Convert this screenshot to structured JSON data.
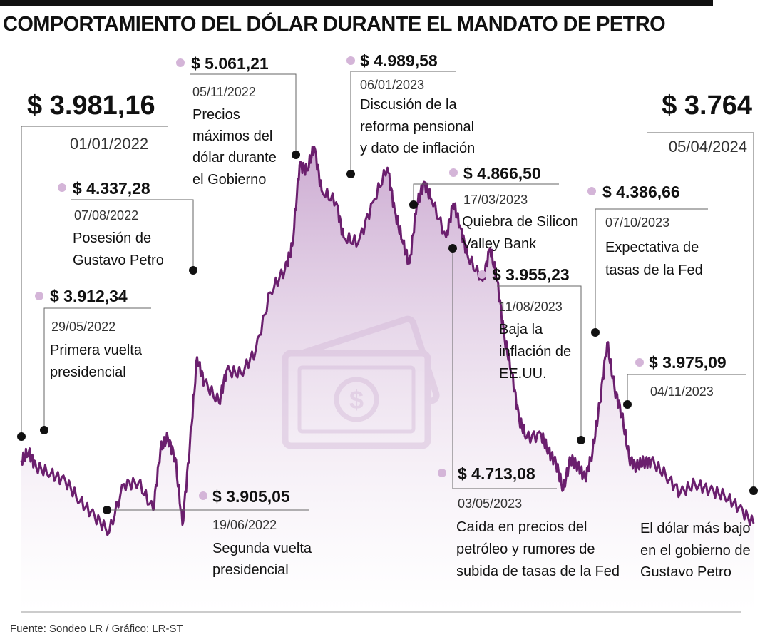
{
  "title": "COMPORTAMIENTO DEL DÓLAR DURANTE EL MANDATO DE PETRO",
  "source": "Fuente: Sondeo LR / Gráfico: LR-ST",
  "colors": {
    "line": "#6b1f6e",
    "fill_top": "#c9a6cf",
    "fill_bottom": "#ffffff",
    "dot_pink": "#d4b5d8",
    "icon": "#d9c3dc"
  },
  "icons": {
    "background": "money-bill-icon"
  },
  "chart_data": {
    "type": "area",
    "title": "COMPORTAMIENTO DEL DÓLAR DURANTE EL MANDATO DE PETRO",
    "x_range": [
      "01/01/2022",
      "05/04/2024"
    ],
    "ylim": [
      3700,
      5100
    ],
    "points": [
      [
        0.0,
        3981
      ],
      [
        0.01,
        4010
      ],
      [
        0.02,
        3960
      ],
      [
        0.04,
        3935
      ],
      [
        0.06,
        3912
      ],
      [
        0.08,
        3840
      ],
      [
        0.1,
        3790
      ],
      [
        0.12,
        3735
      ],
      [
        0.14,
        3900
      ],
      [
        0.16,
        3905
      ],
      [
        0.18,
        3810
      ],
      [
        0.19,
        4020
      ],
      [
        0.2,
        4060
      ],
      [
        0.21,
        3990
      ],
      [
        0.22,
        3760
      ],
      [
        0.23,
        4030
      ],
      [
        0.24,
        4337
      ],
      [
        0.25,
        4250
      ],
      [
        0.27,
        4180
      ],
      [
        0.28,
        4290
      ],
      [
        0.3,
        4280
      ],
      [
        0.32,
        4360
      ],
      [
        0.34,
        4560
      ],
      [
        0.36,
        4640
      ],
      [
        0.37,
        4720
      ],
      [
        0.38,
        5000
      ],
      [
        0.39,
        4980
      ],
      [
        0.4,
        5061
      ],
      [
        0.41,
        4910
      ],
      [
        0.43,
        4870
      ],
      [
        0.44,
        4750
      ],
      [
        0.46,
        4730
      ],
      [
        0.48,
        4870
      ],
      [
        0.5,
        4989
      ],
      [
        0.51,
        4840
      ],
      [
        0.52,
        4740
      ],
      [
        0.53,
        4660
      ],
      [
        0.54,
        4860
      ],
      [
        0.55,
        4940
      ],
      [
        0.56,
        4880
      ],
      [
        0.58,
        4750
      ],
      [
        0.59,
        4866
      ],
      [
        0.6,
        4780
      ],
      [
        0.61,
        4680
      ],
      [
        0.63,
        4600
      ],
      [
        0.64,
        4713
      ],
      [
        0.65,
        4600
      ],
      [
        0.66,
        4400
      ],
      [
        0.67,
        4280
      ],
      [
        0.68,
        4120
      ],
      [
        0.69,
        4060
      ],
      [
        0.71,
        4070
      ],
      [
        0.72,
        4010
      ],
      [
        0.73,
        3975
      ],
      [
        0.74,
        3880
      ],
      [
        0.75,
        3990
      ],
      [
        0.76,
        3960
      ],
      [
        0.77,
        3920
      ],
      [
        0.78,
        4010
      ],
      [
        0.79,
        4180
      ],
      [
        0.8,
        4386
      ],
      [
        0.81,
        4230
      ],
      [
        0.82,
        4140
      ],
      [
        0.83,
        3990
      ],
      [
        0.84,
        3960
      ],
      [
        0.85,
        3975
      ],
      [
        0.86,
        3980
      ],
      [
        0.88,
        3930
      ],
      [
        0.9,
        3870
      ],
      [
        0.92,
        3900
      ],
      [
        0.94,
        3880
      ],
      [
        0.96,
        3860
      ],
      [
        0.98,
        3820
      ],
      [
        1.0,
        3764
      ]
    ],
    "annotations": [
      {
        "value": "$ 3.981,16",
        "date": "01/01/2022",
        "description": []
      },
      {
        "value": "$ 3.912,34",
        "date": "29/05/2022",
        "description": [
          "Primera vuelta",
          "presidencial"
        ]
      },
      {
        "value": "$ 3.905,05",
        "date": "19/06/2022",
        "description": [
          "Segunda vuelta",
          "presidencial"
        ]
      },
      {
        "value": "$ 4.337,28",
        "date": "07/08/2022",
        "description": [
          "Posesión de",
          "Gustavo Petro"
        ]
      },
      {
        "value": "$ 5.061,21",
        "date": "05/11/2022",
        "description": [
          "Precios",
          "máximos del",
          "dólar durante",
          "el Gobierno"
        ]
      },
      {
        "value": "$ 4.989,58",
        "date": "06/01/2023",
        "description": [
          "Discusión de la",
          "reforma pensional",
          "y dato de inflación"
        ]
      },
      {
        "value": "$ 4.866,50",
        "date": "17/03/2023",
        "description": [
          "Quiebra de Silicon",
          "Valley Bank"
        ]
      },
      {
        "value": "$ 4.713,08",
        "date": "03/05/2023",
        "description": [
          "Caída en precios del",
          "petróleo y rumores de",
          "subida de tasas de la Fed"
        ]
      },
      {
        "value": "$ 3.955,23",
        "date": "11/08/2023",
        "description": [
          "Baja la",
          "inflación de",
          "EE.UU."
        ]
      },
      {
        "value": "$ 4.386,66",
        "date": "07/10/2023",
        "description": [
          "Expectativa de",
          "tasas de la Fed"
        ]
      },
      {
        "value": "$ 3.975,09",
        "date": "04/11/2023",
        "description": []
      },
      {
        "value": "$ 3.764",
        "date": "05/04/2024",
        "description": [
          "El dólar más bajo",
          "en el gobierno de",
          "Gustavo Petro"
        ]
      }
    ]
  }
}
